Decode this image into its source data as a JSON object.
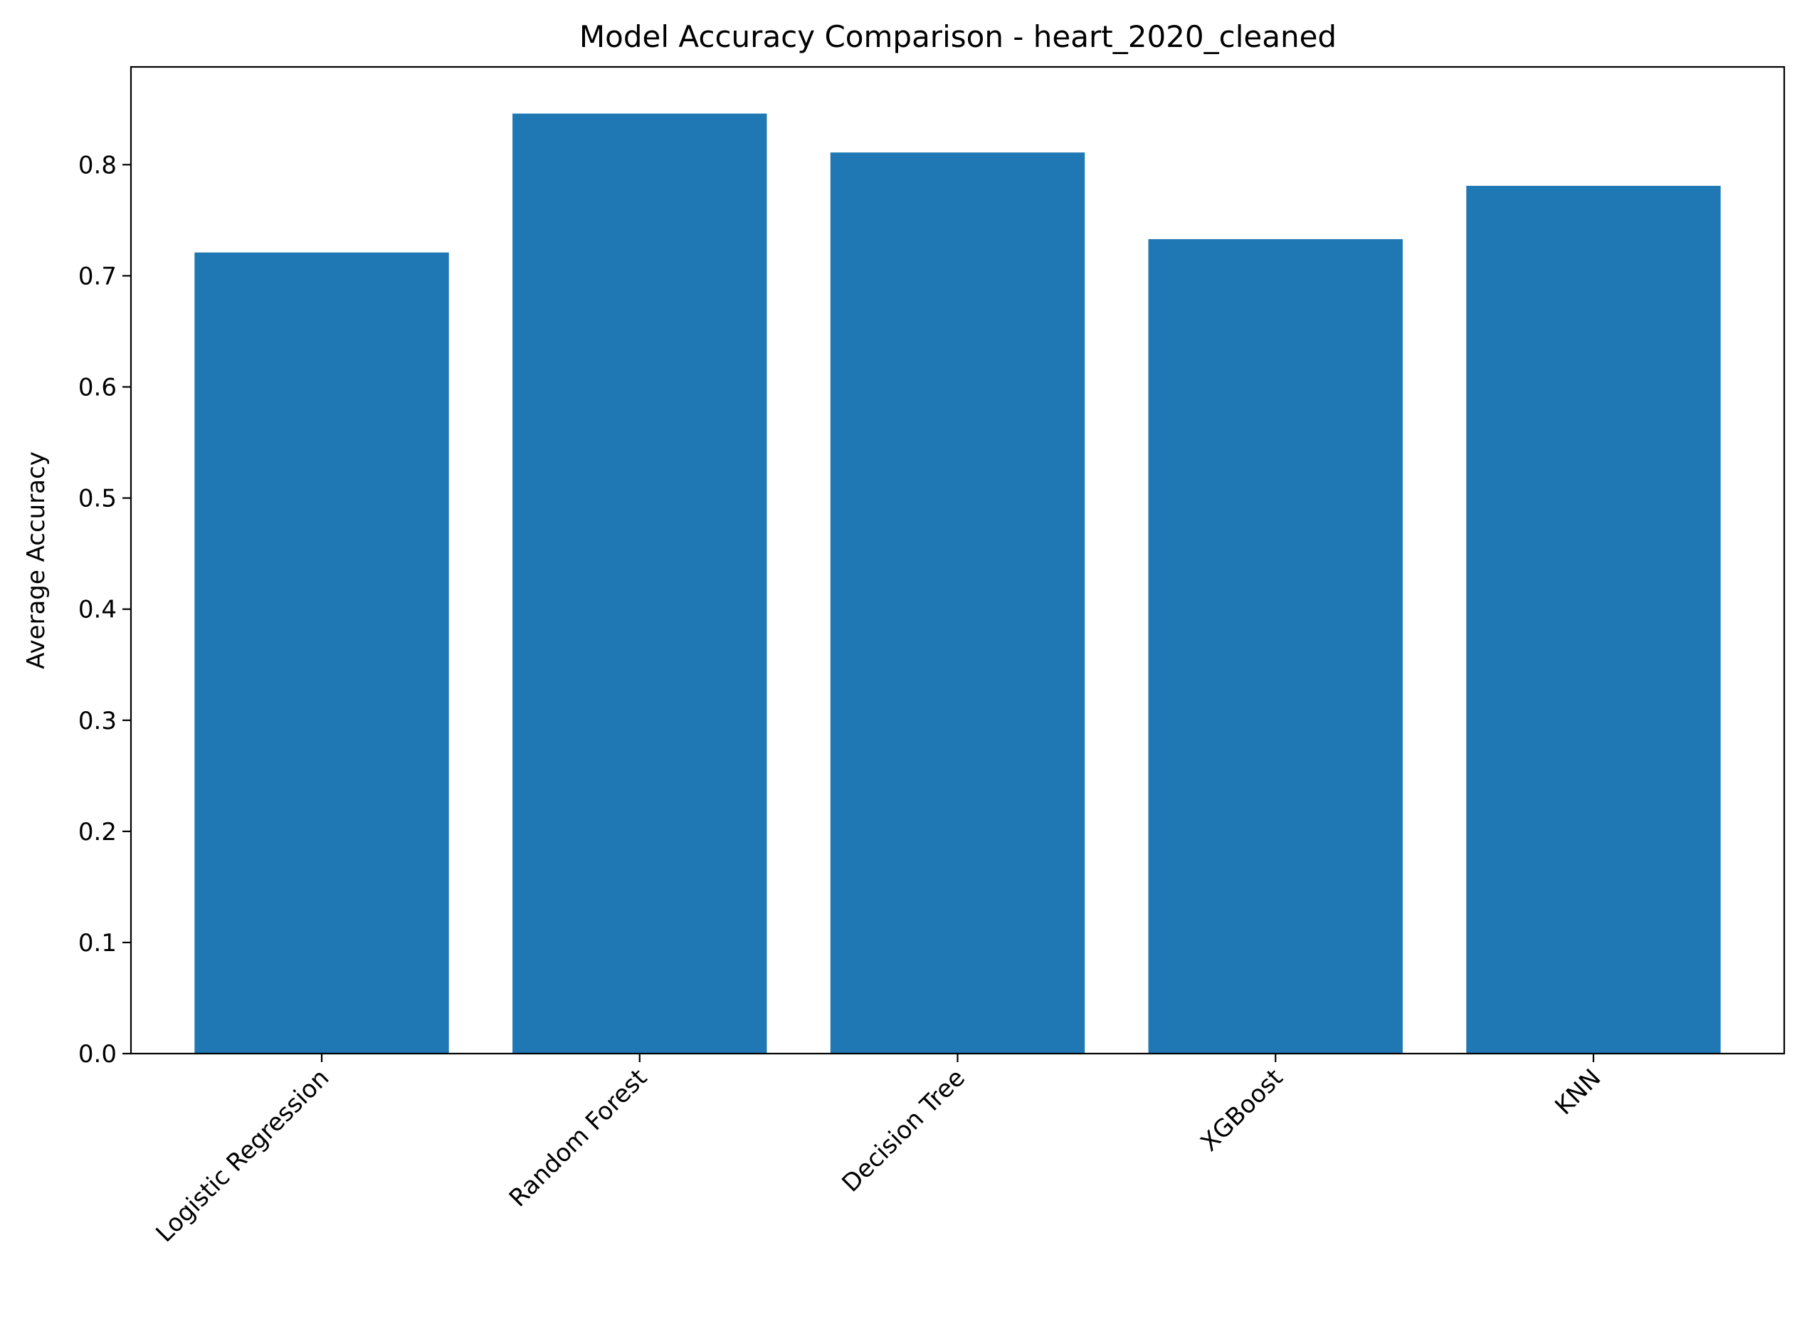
{
  "chart_data": {
    "type": "bar",
    "title": "Model Accuracy Comparison - heart_2020_cleaned",
    "xlabel": "",
    "ylabel": "Average Accuracy",
    "categories": [
      "Logistic Regression",
      "Random Forest",
      "Decision Tree",
      "XGBoost",
      "KNN"
    ],
    "values": [
      0.721,
      0.846,
      0.811,
      0.733,
      0.781
    ],
    "ylim": [
      0,
      0.888
    ],
    "yticks": [
      0.0,
      0.1,
      0.2,
      0.3,
      0.4,
      0.5,
      0.6,
      0.7,
      0.8
    ],
    "ytick_labels": [
      "0.0",
      "0.1",
      "0.2",
      "0.3",
      "0.4",
      "0.5",
      "0.6",
      "0.7",
      "0.8"
    ],
    "bar_color": "#1f77b4",
    "grid": false,
    "legend": "none",
    "xtick_rotation_deg": 45
  }
}
